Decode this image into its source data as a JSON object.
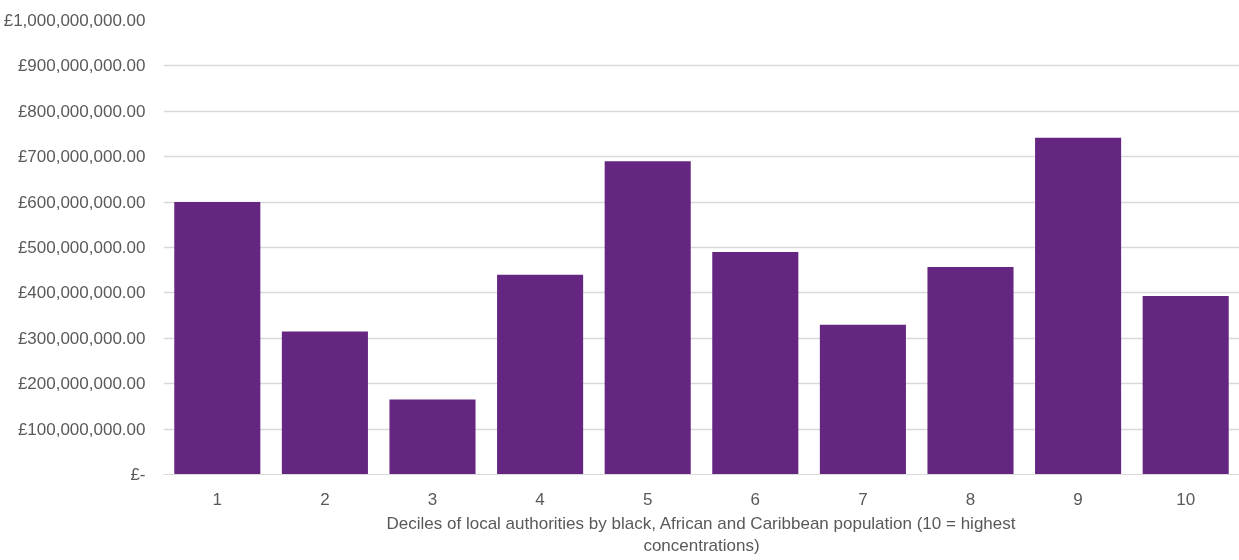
{
  "chart_data": {
    "type": "bar",
    "xlabel": "Deciles of local authorities by black, African and Caribbean population (10 = highest concentrations)",
    "categories": [
      "1",
      "2",
      "3",
      "4",
      "5",
      "6",
      "7",
      "8",
      "9",
      "10"
    ],
    "values": [
      600000000,
      315000000,
      165000000,
      440000000,
      690000000,
      490000000,
      330000000,
      457000000,
      742000000,
      393000000
    ],
    "color": "#652682",
    "ylim": [
      0,
      1000000000
    ],
    "yticks": [
      {
        "value": 0,
        "label": "£-"
      },
      {
        "value": 100000000,
        "label": "£100,000,000.00"
      },
      {
        "value": 200000000,
        "label": "£200,000,000.00"
      },
      {
        "value": 300000000,
        "label": "£300,000,000.00"
      },
      {
        "value": 400000000,
        "label": "£400,000,000.00"
      },
      {
        "value": 500000000,
        "label": "£500,000,000.00"
      },
      {
        "value": 600000000,
        "label": "£600,000,000.00"
      },
      {
        "value": 700000000,
        "label": "£700,000,000.00"
      },
      {
        "value": 800000000,
        "label": "£800,000,000.00"
      },
      {
        "value": 900000000,
        "label": "£900,000,000.00"
      },
      {
        "value": 1000000000,
        "label": "£1,000,000,000.00"
      }
    ],
    "grid": "y"
  }
}
